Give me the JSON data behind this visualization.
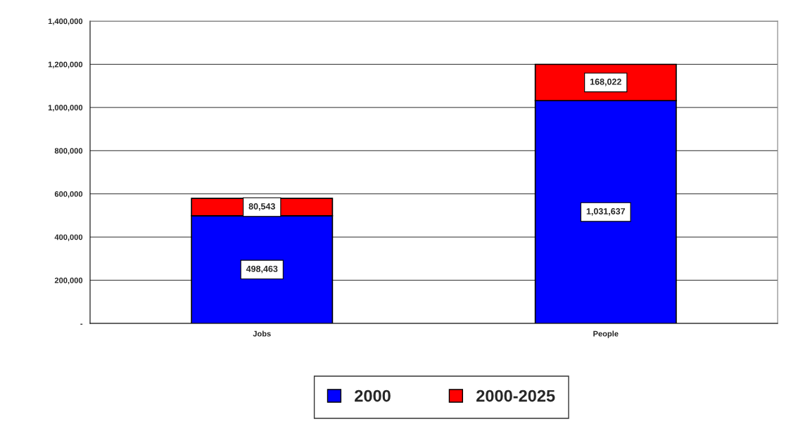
{
  "chart_data": {
    "type": "bar",
    "stacked": true,
    "categories": [
      "Jobs",
      "People"
    ],
    "series": [
      {
        "name": "2000",
        "color": "#0000ff",
        "values": [
          498463,
          1031637
        ],
        "value_labels": [
          "498,463",
          "1,031,637"
        ]
      },
      {
        "name": "2000-2025",
        "color": "#ff0000",
        "values": [
          80543,
          168022
        ],
        "value_labels": [
          "80,543",
          "168,022"
        ]
      }
    ],
    "ylim": [
      0,
      1400000
    ],
    "yticks": [
      {
        "value": 0,
        "label": "-"
      },
      {
        "value": 200000,
        "label": "200,000"
      },
      {
        "value": 400000,
        "label": "400,000"
      },
      {
        "value": 600000,
        "label": "600,000"
      },
      {
        "value": 800000,
        "label": "800,000"
      },
      {
        "value": 1000000,
        "label": "1,000,000"
      },
      {
        "value": 1200000,
        "label": "1,200,000"
      },
      {
        "value": 1400000,
        "label": "1,400,000"
      }
    ],
    "grid": "y",
    "legend": "bottom"
  }
}
